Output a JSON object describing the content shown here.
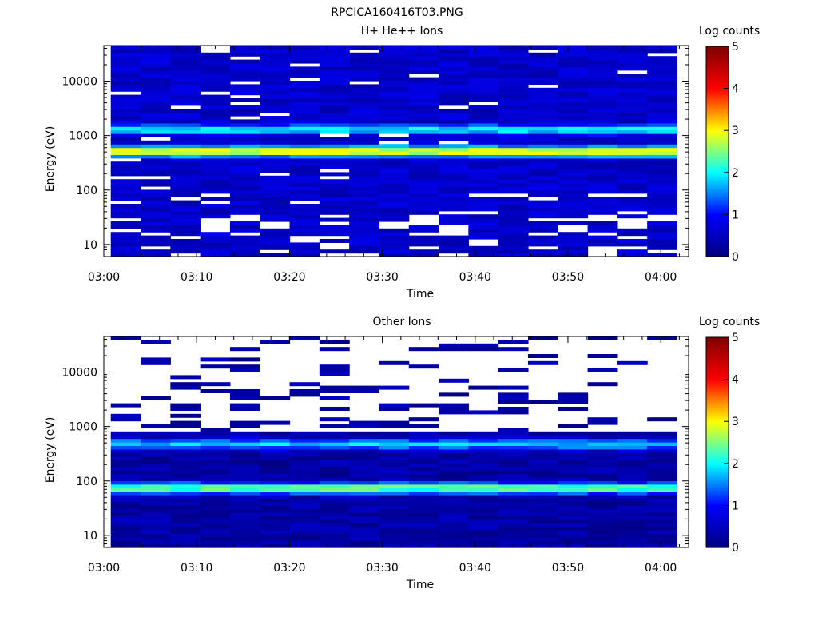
{
  "page_title": "RPCICA160416T03.PNG",
  "colors": {
    "colormap": [
      "#00007f",
      "#0000ff",
      "#00ffff",
      "#ffff00",
      "#ff0000",
      "#7f0000"
    ]
  },
  "chart_data": [
    {
      "type": "heatmap",
      "title": "H+ He++ Ions",
      "xlabel": "Time",
      "ylabel": "Energy (eV)",
      "yscale": "log",
      "ylim": [
        6,
        45000
      ],
      "xlim": [
        "03:00",
        "04:03"
      ],
      "xticks": [
        "03:00",
        "03:10",
        "03:20",
        "03:30",
        "03:40",
        "03:50",
        "04:00"
      ],
      "yticks": [
        {
          "value": 10,
          "label": "10"
        },
        {
          "value": 100,
          "label": "100"
        },
        {
          "value": 1000,
          "label": "1000"
        },
        {
          "value": 10000,
          "label": "10000"
        }
      ],
      "colorbar": {
        "label": "Log counts",
        "range": [
          0,
          5
        ],
        "ticks": [
          "0",
          "1",
          "2",
          "3",
          "4",
          "5"
        ]
      },
      "time_bins": 19,
      "time_start": "03:00:45",
      "time_end": "04:01:45",
      "energy_bins": 60,
      "energy_range_eV": [
        6,
        45000
      ],
      "peak_bands": [
        {
          "energy_eV": 520,
          "log_counts": 3.0
        },
        {
          "energy_eV": 1300,
          "log_counts": 2.0
        }
      ],
      "background_log_counts": 0.6,
      "empty_fraction_low_energy": 0.25,
      "seed": 11
    },
    {
      "type": "heatmap",
      "title": "Other Ions",
      "xlabel": "Time",
      "ylabel": "Energy (eV)",
      "yscale": "log",
      "ylim": [
        6,
        45000
      ],
      "xlim": [
        "03:00",
        "04:03"
      ],
      "xticks": [
        "03:00",
        "03:10",
        "03:20",
        "03:30",
        "03:40",
        "03:50",
        "04:00"
      ],
      "yticks": [
        {
          "value": 10,
          "label": "10"
        },
        {
          "value": 100,
          "label": "100"
        },
        {
          "value": 1000,
          "label": "1000"
        },
        {
          "value": 10000,
          "label": "10000"
        }
      ],
      "colorbar": {
        "label": "Log counts",
        "range": [
          0,
          5
        ],
        "ticks": [
          "0",
          "1",
          "2",
          "3",
          "4",
          "5"
        ]
      },
      "time_bins": 19,
      "time_start": "03:00:45",
      "time_end": "04:01:45",
      "energy_bins": 60,
      "energy_range_eV": [
        6,
        45000
      ],
      "peak_bands": [
        {
          "energy_eV": 480,
          "log_counts": 1.8
        },
        {
          "energy_eV": 75,
          "log_counts": 2.4
        }
      ],
      "background_log_counts": 0.3,
      "empty_fraction_high_energy": 0.8,
      "seed": 23
    }
  ]
}
